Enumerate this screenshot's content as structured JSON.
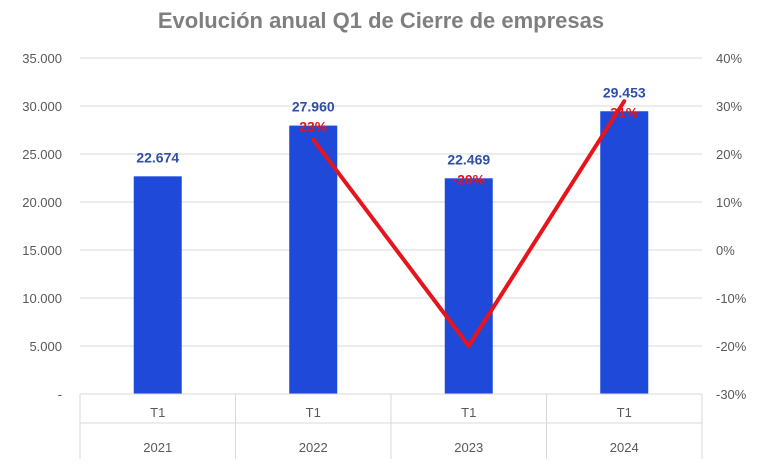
{
  "chart_data": {
    "type": "bar",
    "title": "Evolución anual Q1 de Cierre de empresas",
    "quarter_labels": [
      "T1",
      "T1",
      "T1",
      "T1"
    ],
    "year_labels": [
      "2021",
      "2022",
      "2023",
      "2024"
    ],
    "values": [
      22674,
      27960,
      22469,
      29453
    ],
    "value_labels": [
      "22.674",
      "27.960",
      "22.469",
      "29.453"
    ],
    "change_series": {
      "type": "line",
      "values": [
        null,
        23,
        -20,
        31
      ],
      "labels": [
        "",
        "23%",
        "-20%",
        "31%"
      ]
    },
    "y_left": {
      "range": [
        0,
        35000
      ],
      "ticks": [
        0,
        5000,
        10000,
        15000,
        20000,
        25000,
        30000,
        35000
      ],
      "tick_labels": [
        "-",
        "5.000",
        "10.000",
        "15.000",
        "20.000",
        "25.000",
        "30.000",
        "35.000"
      ]
    },
    "y_right": {
      "range": [
        -30,
        40
      ],
      "ticks": [
        -30,
        -20,
        -10,
        0,
        10,
        20,
        30,
        40
      ],
      "tick_labels": [
        "-30%",
        "-20%",
        "-10%",
        "0%",
        "10%",
        "20%",
        "30%",
        "40%"
      ]
    },
    "grid": true,
    "colors": {
      "bars": "#1f49d8",
      "value_label": "#2e4fa8",
      "line": "#e8141b",
      "grid": "#d9d9d9",
      "title": "#7f7f7f",
      "ticks": "#595959"
    }
  }
}
